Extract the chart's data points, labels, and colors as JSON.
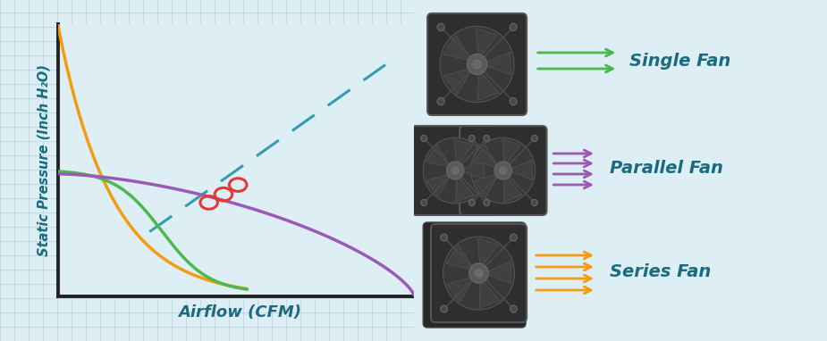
{
  "bg_color": "#ddeef5",
  "grid_color": "#b8d4e0",
  "axis_color": "#222222",
  "ylabel": "Static Pressure (Inch H₂O)",
  "xlabel": "Airflow (CFM)",
  "label_color": "#1a6b80",
  "single_fan_color": "#4db84e",
  "parallel_fan_color": "#9b59b6",
  "series_fan_color": "#f39c12",
  "dashed_line_color": "#2196a8",
  "intersection_color": "#e53935",
  "legend_labels": [
    "Single Fan",
    "Parallel Fan",
    "Series Fan"
  ],
  "fan_body": "#2e2e2e",
  "fan_blade": "#383838",
  "fan_hub": "#555555",
  "fan_edge": "#444444"
}
